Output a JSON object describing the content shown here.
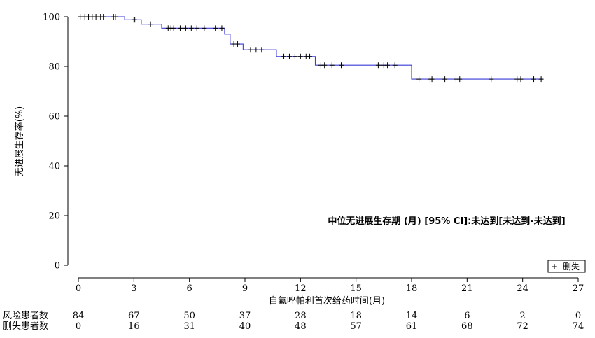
{
  "chart_data": {
    "type": "line",
    "subtype": "kaplan-meier",
    "title": "",
    "xlabel": "自氟唑帕利首次给药时间(月)",
    "ylabel": "无进展生存率(%)",
    "xlim": [
      0,
      27
    ],
    "ylim": [
      0,
      100
    ],
    "xticks": [
      0,
      3,
      6,
      9,
      12,
      15,
      18,
      21,
      24,
      27
    ],
    "yticks": [
      0,
      20,
      40,
      60,
      80,
      100
    ],
    "grid": false,
    "series": [
      {
        "color": "#3a3ad8",
        "steps": [
          {
            "x": 0,
            "y": 100
          },
          {
            "x": 2.5,
            "y": 98.8
          },
          {
            "x": 3.4,
            "y": 97.0
          },
          {
            "x": 4.5,
            "y": 95.4
          },
          {
            "x": 7.9,
            "y": 93.0
          },
          {
            "x": 8.2,
            "y": 89.0
          },
          {
            "x": 8.9,
            "y": 86.7
          },
          {
            "x": 10.7,
            "y": 84.0
          },
          {
            "x": 12.8,
            "y": 80.5
          },
          {
            "x": 18.0,
            "y": 74.9
          },
          {
            "x": 25.1,
            "y": 74.9
          }
        ],
        "censored": [
          {
            "x": 0.1,
            "y": 100
          },
          {
            "x": 0.35,
            "y": 100
          },
          {
            "x": 0.55,
            "y": 100
          },
          {
            "x": 0.75,
            "y": 100
          },
          {
            "x": 0.95,
            "y": 100
          },
          {
            "x": 1.2,
            "y": 100
          },
          {
            "x": 1.35,
            "y": 100
          },
          {
            "x": 1.9,
            "y": 100
          },
          {
            "x": 2.0,
            "y": 100
          },
          {
            "x": 3.0,
            "y": 98.8
          },
          {
            "x": 3.05,
            "y": 98.8
          },
          {
            "x": 3.9,
            "y": 97.0
          },
          {
            "x": 4.85,
            "y": 95.4
          },
          {
            "x": 5.0,
            "y": 95.4
          },
          {
            "x": 5.15,
            "y": 95.4
          },
          {
            "x": 5.5,
            "y": 95.4
          },
          {
            "x": 5.8,
            "y": 95.4
          },
          {
            "x": 6.1,
            "y": 95.4
          },
          {
            "x": 6.4,
            "y": 95.4
          },
          {
            "x": 6.8,
            "y": 95.4
          },
          {
            "x": 7.4,
            "y": 95.4
          },
          {
            "x": 7.75,
            "y": 95.4
          },
          {
            "x": 8.4,
            "y": 89.0
          },
          {
            "x": 8.6,
            "y": 89.0
          },
          {
            "x": 9.3,
            "y": 86.7
          },
          {
            "x": 9.6,
            "y": 86.7
          },
          {
            "x": 9.9,
            "y": 86.7
          },
          {
            "x": 11.1,
            "y": 84.0
          },
          {
            "x": 11.4,
            "y": 84.0
          },
          {
            "x": 11.7,
            "y": 84.0
          },
          {
            "x": 12.0,
            "y": 84.0
          },
          {
            "x": 12.3,
            "y": 84.0
          },
          {
            "x": 12.5,
            "y": 84.0
          },
          {
            "x": 13.1,
            "y": 80.5
          },
          {
            "x": 13.3,
            "y": 80.5
          },
          {
            "x": 13.7,
            "y": 80.5
          },
          {
            "x": 14.2,
            "y": 80.5
          },
          {
            "x": 16.2,
            "y": 80.5
          },
          {
            "x": 16.5,
            "y": 80.5
          },
          {
            "x": 16.7,
            "y": 80.5
          },
          {
            "x": 17.1,
            "y": 80.5
          },
          {
            "x": 18.4,
            "y": 74.9
          },
          {
            "x": 19.0,
            "y": 74.9
          },
          {
            "x": 19.1,
            "y": 74.9
          },
          {
            "x": 19.8,
            "y": 74.9
          },
          {
            "x": 20.4,
            "y": 74.9
          },
          {
            "x": 20.6,
            "y": 74.9
          },
          {
            "x": 22.3,
            "y": 74.9
          },
          {
            "x": 23.7,
            "y": 74.9
          },
          {
            "x": 23.9,
            "y": 74.9
          },
          {
            "x": 24.6,
            "y": 74.9
          },
          {
            "x": 25.0,
            "y": 74.9
          }
        ]
      }
    ],
    "annotation": "中位无进展生存期 (月) [95% CI]:未达到[未达到-未达到]",
    "legend": {
      "symbol": "+",
      "label": "删失",
      "placement": "bottom-right"
    },
    "risk_table": {
      "times": [
        0,
        3,
        6,
        9,
        12,
        15,
        18,
        21,
        24,
        27
      ],
      "rows": [
        {
          "label": "风险患者数",
          "values": [
            "84",
            "67",
            "50",
            "37",
            "28",
            "18",
            "14",
            "6",
            "2",
            "0"
          ]
        },
        {
          "label": "删失患者数",
          "values": [
            "0",
            "16",
            "31",
            "40",
            "48",
            "57",
            "61",
            "68",
            "72",
            "74"
          ]
        }
      ]
    }
  }
}
